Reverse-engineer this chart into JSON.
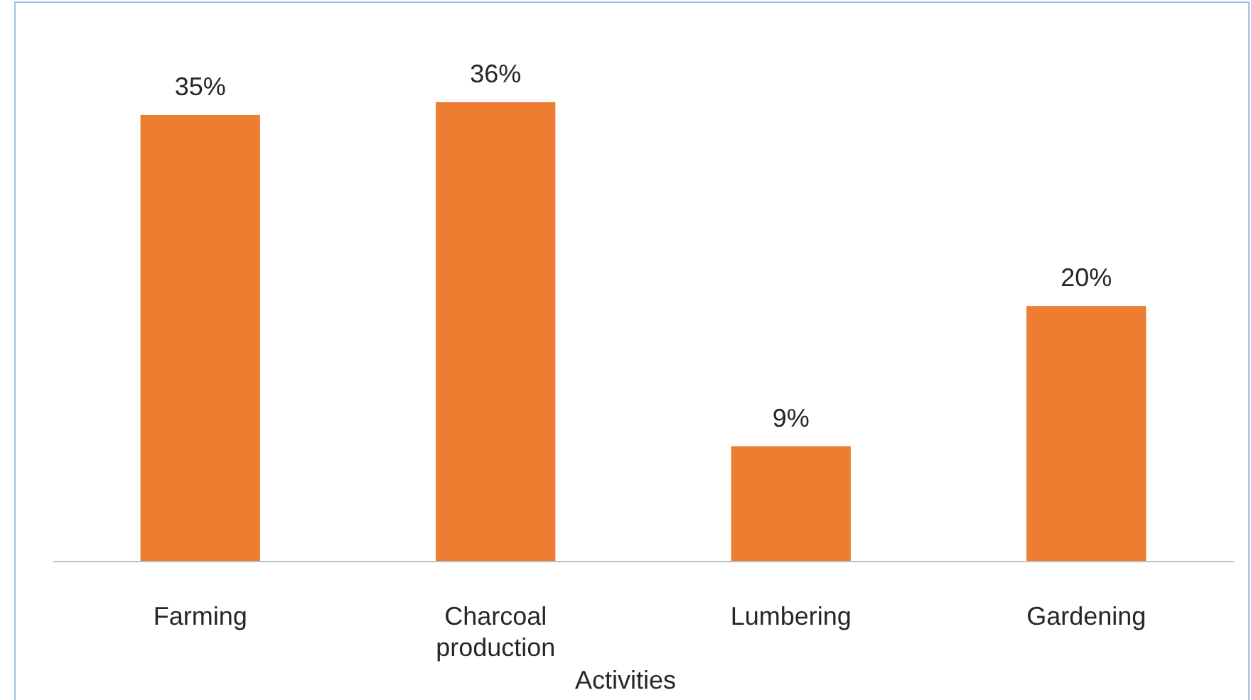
{
  "chart_data": {
    "type": "bar",
    "xlabel": "Activities",
    "categories": [
      "Farming",
      "Charcoal production",
      "Lumbering",
      "Gardening"
    ],
    "values": [
      35,
      36,
      9,
      20
    ],
    "color": "#ed7d31",
    "value_labels": [
      "35%",
      "36%",
      "9%",
      "20%"
    ]
  }
}
